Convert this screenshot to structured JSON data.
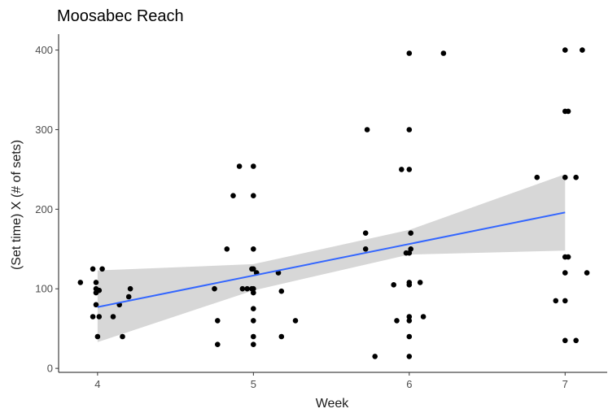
{
  "chart_data": {
    "type": "scatter",
    "title": "Moosabec Reach",
    "xlabel": "Week",
    "ylabel": "(Set time) X  (# of sets)",
    "xlim": [
      3.75,
      7.27
    ],
    "ylim": [
      -5,
      420
    ],
    "x_ticks": [
      4,
      5,
      6,
      7
    ],
    "y_ticks": [
      0,
      100,
      200,
      300,
      400
    ],
    "x_tick_labels": [
      "4",
      "5",
      "6",
      "7"
    ],
    "y_tick_labels": [
      "0",
      "100",
      "200",
      "300",
      "400"
    ],
    "grid": false,
    "legend": "none",
    "colors": {
      "points": "#000000",
      "trend_line": "#3366ff",
      "confidence_band": "#d3d3d3"
    },
    "points": [
      {
        "x": 3.89,
        "y": 108
      },
      {
        "x": 3.97,
        "y": 125
      },
      {
        "x": 4.03,
        "y": 125
      },
      {
        "x": 3.99,
        "y": 108
      },
      {
        "x": 3.99,
        "y": 100
      },
      {
        "x": 3.99,
        "y": 95
      },
      {
        "x": 4.01,
        "y": 98
      },
      {
        "x": 3.99,
        "y": 80
      },
      {
        "x": 3.97,
        "y": 65
      },
      {
        "x": 4.01,
        "y": 65
      },
      {
        "x": 4.0,
        "y": 40
      },
      {
        "x": 4.1,
        "y": 65
      },
      {
        "x": 4.14,
        "y": 80
      },
      {
        "x": 4.16,
        "y": 40
      },
      {
        "x": 4.2,
        "y": 90
      },
      {
        "x": 4.21,
        "y": 100
      },
      {
        "x": 4.75,
        "y": 100
      },
      {
        "x": 4.77,
        "y": 60
      },
      {
        "x": 4.77,
        "y": 30
      },
      {
        "x": 4.83,
        "y": 150
      },
      {
        "x": 4.87,
        "y": 217
      },
      {
        "x": 4.91,
        "y": 254
      },
      {
        "x": 4.93,
        "y": 100
      },
      {
        "x": 4.96,
        "y": 100
      },
      {
        "x": 4.99,
        "y": 100
      },
      {
        "x": 4.99,
        "y": 125
      },
      {
        "x": 5.0,
        "y": 254
      },
      {
        "x": 5.0,
        "y": 217
      },
      {
        "x": 5.0,
        "y": 150
      },
      {
        "x": 5.0,
        "y": 125
      },
      {
        "x": 5.0,
        "y": 100
      },
      {
        "x": 5.0,
        "y": 95
      },
      {
        "x": 5.0,
        "y": 75
      },
      {
        "x": 5.0,
        "y": 60
      },
      {
        "x": 5.0,
        "y": 40
      },
      {
        "x": 5.0,
        "y": 30
      },
      {
        "x": 5.02,
        "y": 120
      },
      {
        "x": 5.16,
        "y": 120
      },
      {
        "x": 5.18,
        "y": 97
      },
      {
        "x": 5.18,
        "y": 40
      },
      {
        "x": 5.27,
        "y": 60
      },
      {
        "x": 5.72,
        "y": 170
      },
      {
        "x": 5.72,
        "y": 150
      },
      {
        "x": 5.73,
        "y": 300
      },
      {
        "x": 5.78,
        "y": 15
      },
      {
        "x": 5.9,
        "y": 105
      },
      {
        "x": 5.92,
        "y": 60
      },
      {
        "x": 5.95,
        "y": 250
      },
      {
        "x": 5.98,
        "y": 145
      },
      {
        "x": 6.0,
        "y": 396
      },
      {
        "x": 6.0,
        "y": 300
      },
      {
        "x": 6.0,
        "y": 250
      },
      {
        "x": 6.01,
        "y": 170
      },
      {
        "x": 6.01,
        "y": 150
      },
      {
        "x": 6.0,
        "y": 145
      },
      {
        "x": 6.0,
        "y": 108
      },
      {
        "x": 6.0,
        "y": 105
      },
      {
        "x": 6.0,
        "y": 65
      },
      {
        "x": 6.0,
        "y": 60
      },
      {
        "x": 6.0,
        "y": 40
      },
      {
        "x": 6.0,
        "y": 15
      },
      {
        "x": 6.07,
        "y": 108
      },
      {
        "x": 6.09,
        "y": 65
      },
      {
        "x": 6.22,
        "y": 396
      },
      {
        "x": 6.82,
        "y": 240
      },
      {
        "x": 6.94,
        "y": 85
      },
      {
        "x": 7.0,
        "y": 400
      },
      {
        "x": 7.0,
        "y": 323
      },
      {
        "x": 7.02,
        "y": 323
      },
      {
        "x": 7.0,
        "y": 240
      },
      {
        "x": 7.0,
        "y": 140
      },
      {
        "x": 7.02,
        "y": 140
      },
      {
        "x": 7.0,
        "y": 120
      },
      {
        "x": 7.0,
        "y": 85
      },
      {
        "x": 7.0,
        "y": 35
      },
      {
        "x": 7.07,
        "y": 240
      },
      {
        "x": 7.07,
        "y": 35
      },
      {
        "x": 7.11,
        "y": 400
      },
      {
        "x": 7.14,
        "y": 120
      }
    ],
    "trend_line": {
      "x": [
        4,
        7
      ],
      "y": [
        77,
        196
      ]
    },
    "confidence_band": {
      "x": [
        4,
        5,
        6,
        7
      ],
      "upper": [
        123,
        131,
        174,
        244
      ],
      "lower": [
        33,
        98,
        143,
        148
      ]
    }
  }
}
